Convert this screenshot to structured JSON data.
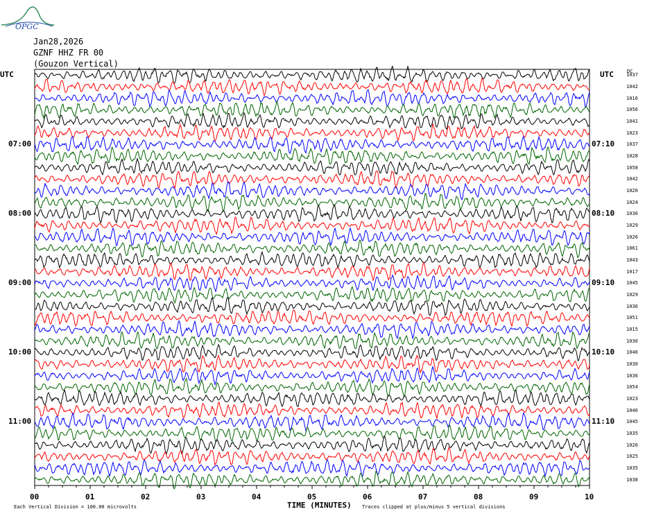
{
  "header": {
    "logo_text": "OPGC",
    "date": "Jan28,2026",
    "station": "GZNF HHZ FR 00",
    "site": "(Gouzon Vertical)"
  },
  "axis": {
    "utc_left": "UTC",
    "utc_right": "UTC",
    "dc_label": "DC",
    "xlabel": "TIME (MINUTES)",
    "footer_left": "Each Vertical Division =  100.00 microvolts",
    "footer_right": "Traces clipped at plus/minus 5 vertical divisions"
  },
  "chart_data": {
    "type": "line",
    "title": "",
    "xlabel": "TIME (MINUTES)",
    "ylabel": "",
    "xlim": [
      0,
      10
    ],
    "x_ticks": [
      "00",
      "01",
      "02",
      "03",
      "04",
      "05",
      "06",
      "07",
      "08",
      "09",
      "10"
    ],
    "rows_per_hour": 6,
    "left_hour_labels": [
      "07:00",
      "08:00",
      "09:00",
      "10:00",
      "11:00"
    ],
    "right_hour_labels": [
      "07:10",
      "08:10",
      "09:10",
      "10:10",
      "11:10"
    ],
    "trace_colors": [
      "#000000",
      "#ff0000",
      "#0000ff",
      "#006400"
    ],
    "dc_offsets": [
      1037,
      1042,
      1016,
      1056,
      1041,
      1023,
      1037,
      1028,
      1058,
      1042,
      1020,
      1024,
      1036,
      1029,
      1026,
      1061,
      1043,
      1017,
      1045,
      1029,
      1036,
      1051,
      1015,
      1030,
      1046,
      1030,
      1036,
      1054,
      1023,
      1046,
      1045,
      1035,
      1020,
      1025,
      1035,
      1038
    ],
    "grid": false
  }
}
